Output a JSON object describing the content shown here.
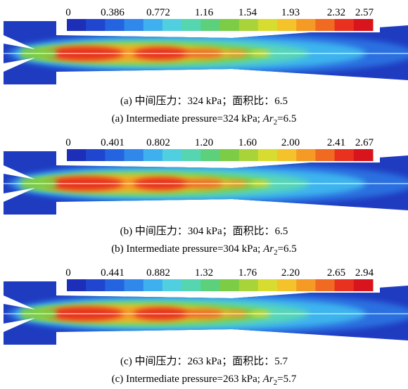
{
  "panels": [
    {
      "colorbar_labels": [
        "0",
        "0.386",
        "0.772",
        "1.16",
        "1.54",
        "1.93",
        "2.32",
        "2.57"
      ],
      "caption_zh": "(a) 中间压力：324 kPa；面积比：6.5",
      "caption_en": {
        "text": "(a) Intermediate pressure=324 kPa; ",
        "var": "Ar",
        "sub": "2",
        "value": "=6.5"
      }
    },
    {
      "colorbar_labels": [
        "0",
        "0.401",
        "0.802",
        "1.20",
        "1.60",
        "2.00",
        "2.41",
        "2.67"
      ],
      "caption_zh": "(b) 中间压力：304 kPa；面积比：6.5",
      "caption_en": {
        "text": "(b) Intermediate pressure=304 kPa; ",
        "var": "Ar",
        "sub": "2",
        "value": "=6.5"
      }
    },
    {
      "colorbar_labels": [
        "0",
        "0.441",
        "0.882",
        "1.32",
        "1.76",
        "2.20",
        "2.65",
        "2.94"
      ],
      "caption_zh": "(c) 中间压力：263 kPa；面积比：5.7",
      "caption_en": {
        "text": "(c) Intermediate pressure=263 kPa; ",
        "var": "Ar",
        "sub": "2",
        "value": "=5.7"
      }
    }
  ]
}
